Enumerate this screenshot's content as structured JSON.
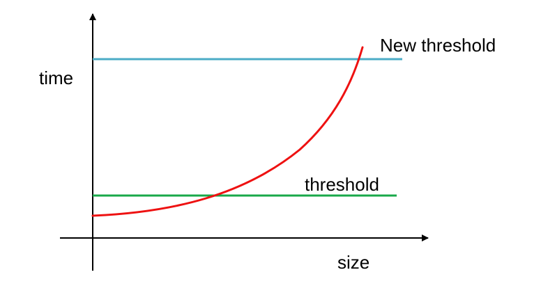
{
  "labels": {
    "y_axis": "time",
    "x_axis": "size",
    "new_threshold": "New threshold",
    "threshold": "threshold"
  },
  "colors": {
    "axis": "#000000",
    "curve": "#ee1111",
    "new_threshold_line": "#4bacc6",
    "threshold_line": "#18a84a"
  }
}
